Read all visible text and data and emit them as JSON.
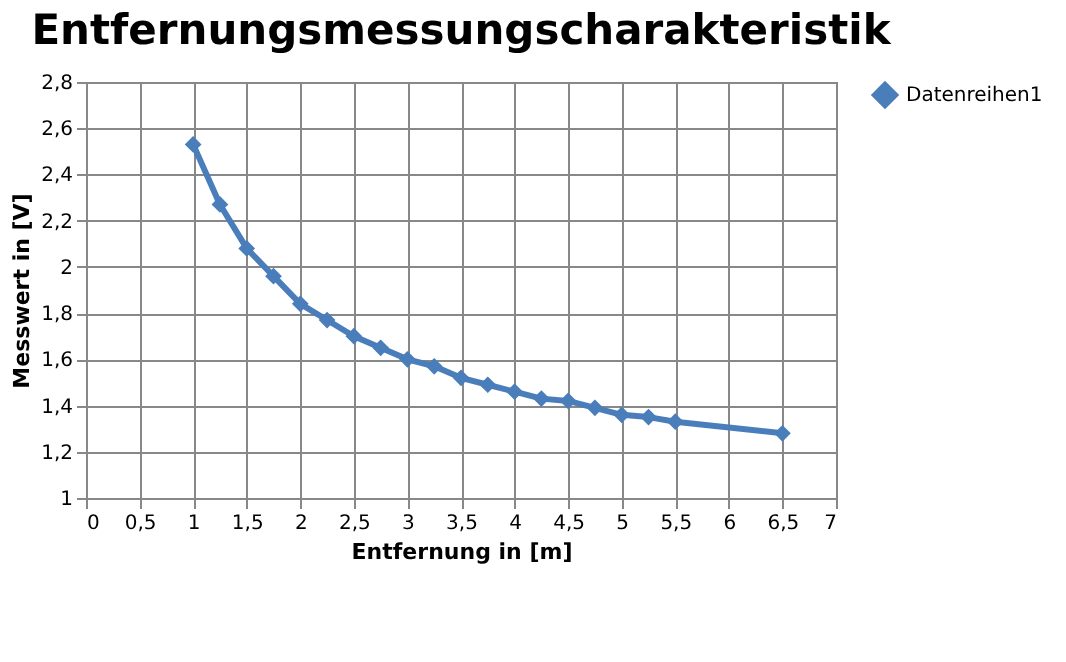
{
  "chart_data": {
    "type": "line",
    "title": "Entfernungsmessungscharakteristik",
    "xlabel": "Entfernung in [m]",
    "ylabel": "Messwert in [V]",
    "x": [
      1,
      1.25,
      1.5,
      1.75,
      2,
      2.25,
      2.5,
      2.75,
      3,
      3.25,
      3.5,
      3.75,
      4,
      4.25,
      4.5,
      4.75,
      5,
      5.25,
      5.5,
      6.5
    ],
    "series": [
      {
        "name": "Datenreihen1",
        "color": "#4a7ebb",
        "values": [
          2.53,
          2.27,
          2.08,
          1.96,
          1.84,
          1.77,
          1.7,
          1.65,
          1.6,
          1.57,
          1.52,
          1.49,
          1.46,
          1.43,
          1.42,
          1.39,
          1.36,
          1.35,
          1.33,
          1.28
        ]
      }
    ],
    "xlim": [
      0,
      7
    ],
    "xticks": [
      0,
      {
        "value": 0.5,
        "label": "0,5"
      },
      1,
      {
        "value": 1.5,
        "label": "1,5"
      },
      2,
      {
        "value": 2.5,
        "label": "2,5"
      },
      3,
      {
        "value": 3.5,
        "label": "3,5"
      },
      4,
      {
        "value": 4.5,
        "label": "4,5"
      },
      5,
      {
        "value": 5.5,
        "label": "5,5"
      },
      6,
      {
        "value": 6.5,
        "label": "6,5"
      },
      7
    ],
    "ylim": [
      1,
      2.8
    ],
    "yticks": [
      1,
      {
        "value": 1.2,
        "label": "1,2"
      },
      {
        "value": 1.4,
        "label": "1,4"
      },
      {
        "value": 1.6,
        "label": "1,6"
      },
      {
        "value": 1.8,
        "label": "1,8"
      },
      2,
      {
        "value": 2.2,
        "label": "2,2"
      },
      {
        "value": 2.4,
        "label": "2,4"
      },
      {
        "value": 2.6,
        "label": "2,6"
      },
      {
        "value": 2.8,
        "label": "2,8"
      }
    ],
    "grid": true,
    "legend": "right",
    "marker": "diamond",
    "line_style": "solid"
  }
}
